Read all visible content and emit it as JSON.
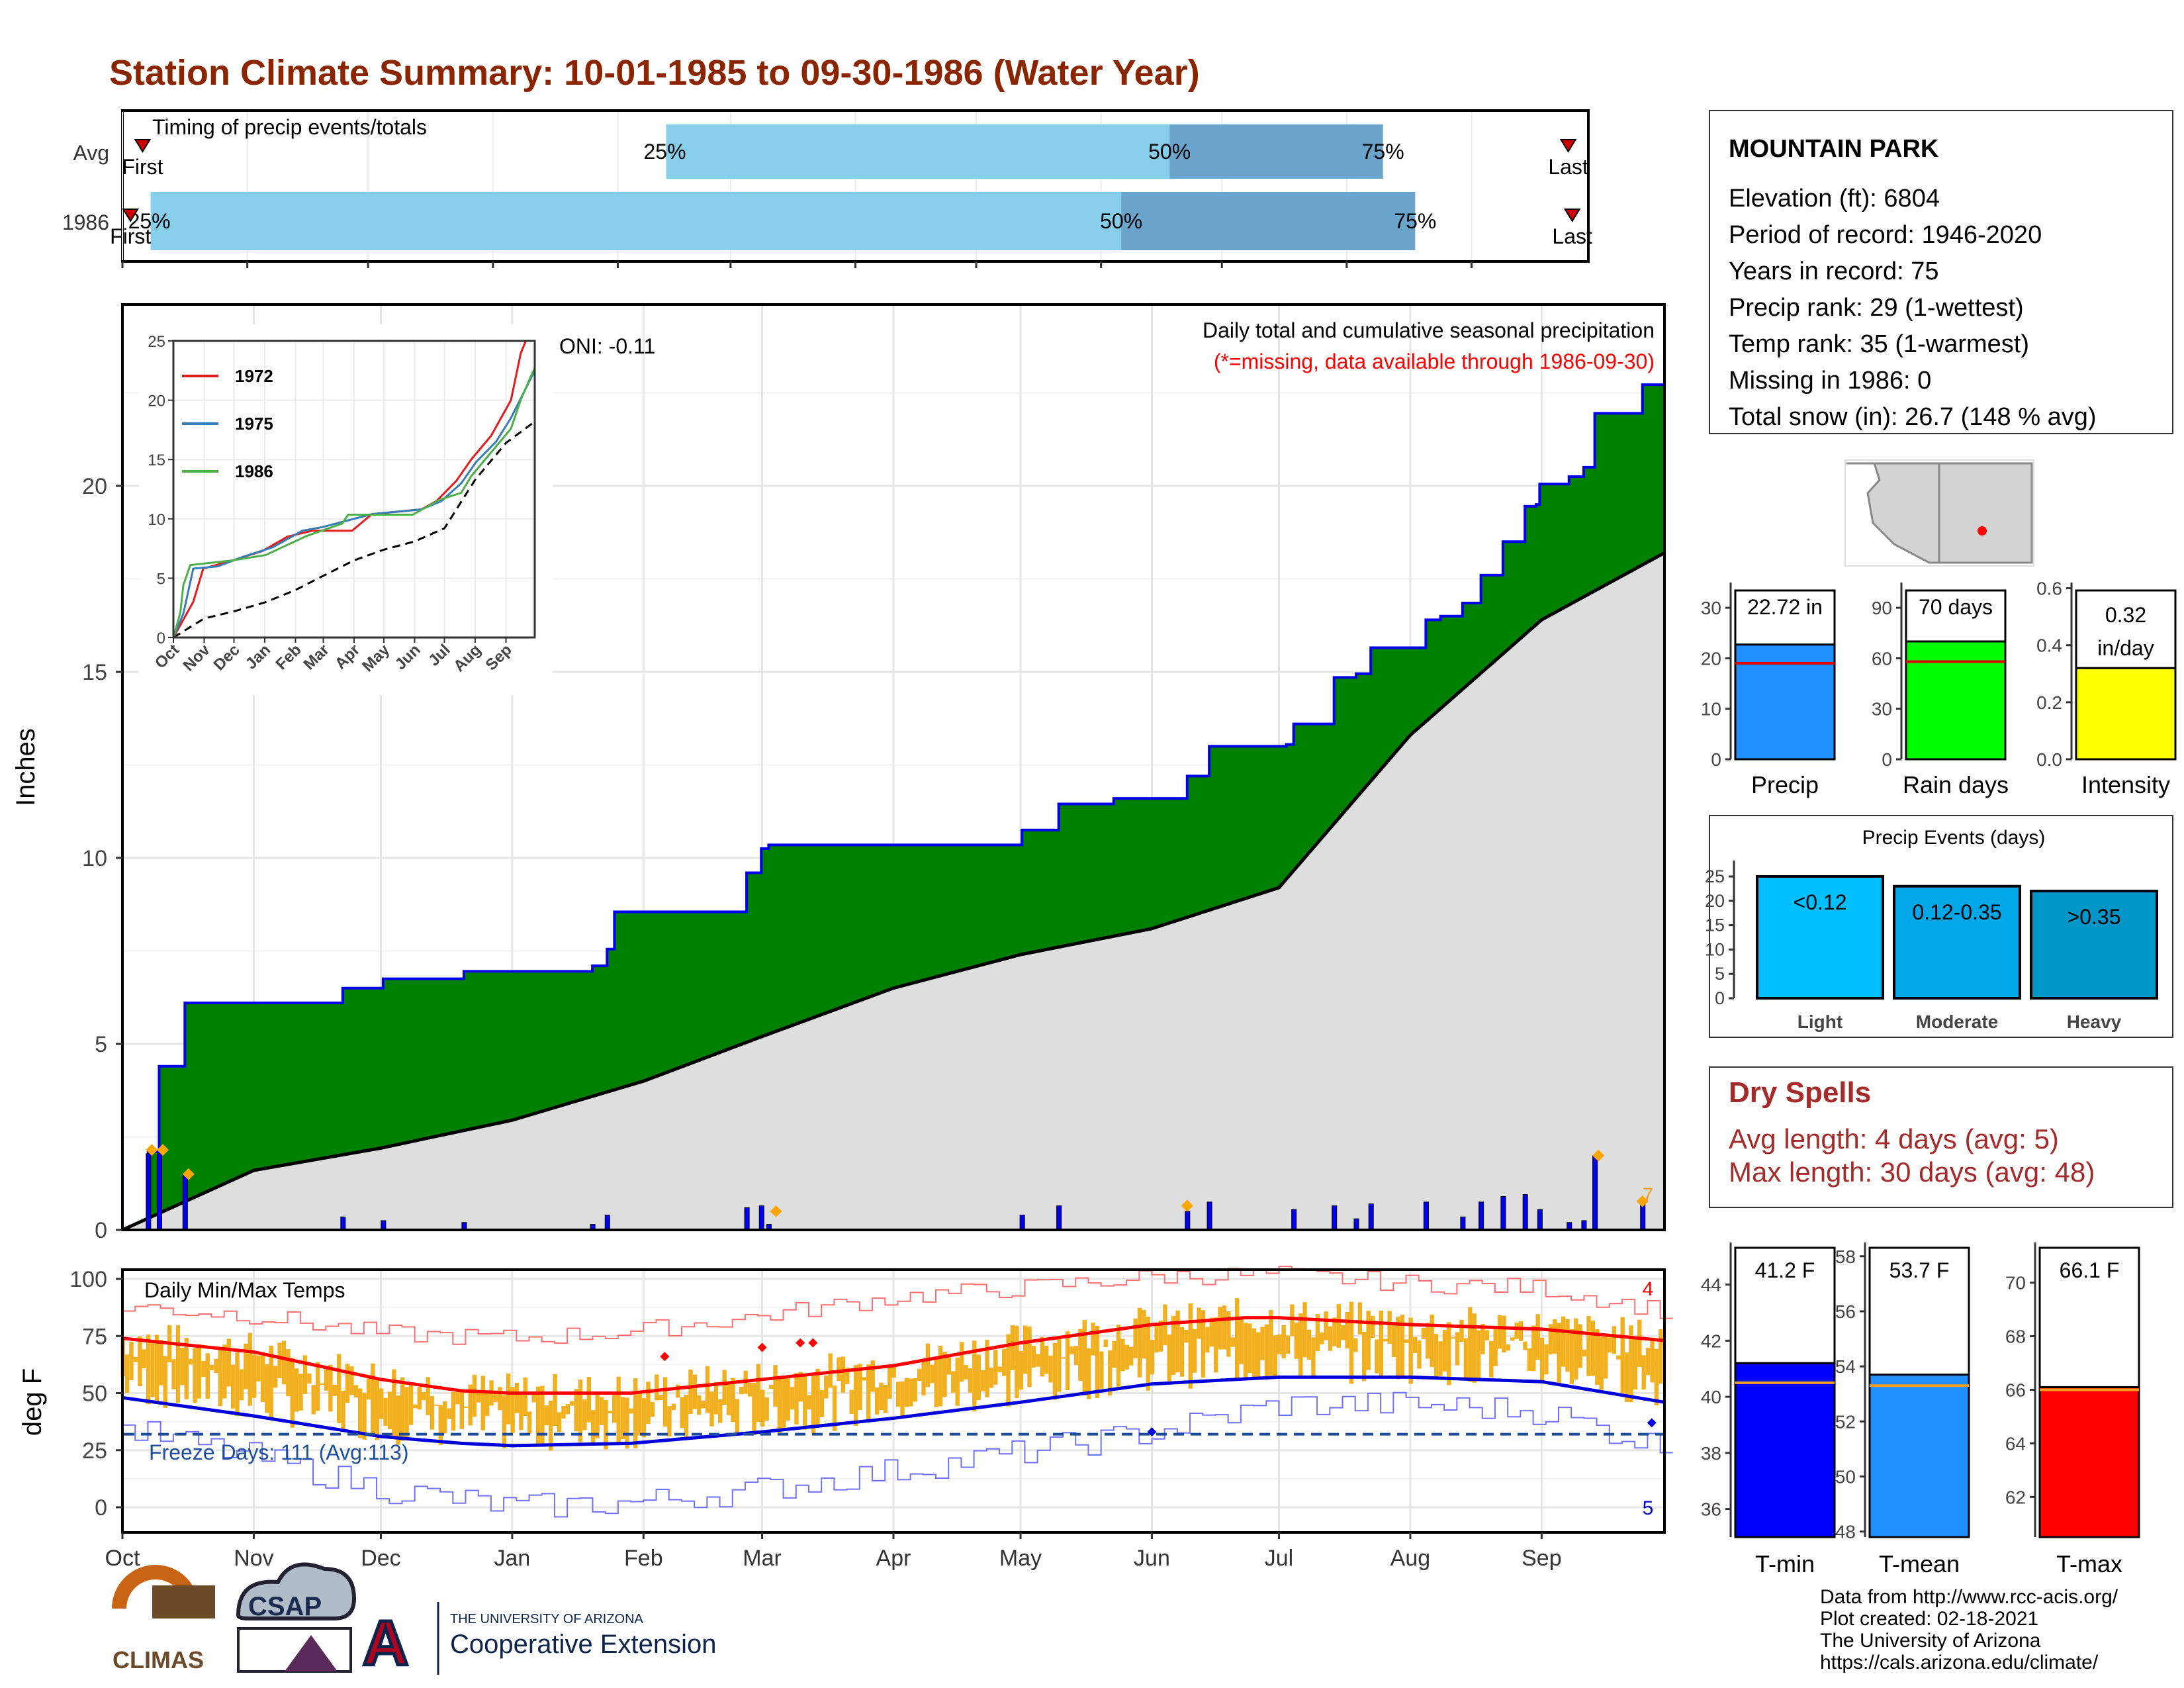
{
  "page": {
    "title": "Station Climate Summary: 10-01-1985 to 09-30-1986 (Water Year)",
    "colors": {
      "title": "#8b2500",
      "green": "#008000",
      "gray": "#dedede",
      "blue": "#0000ee",
      "lightblue": "#87ceeb",
      "midblue": "#6aa4cc",
      "orange": "#f0b020",
      "red": "#ff0000"
    }
  },
  "timing": {
    "title": "Timing of precip events/totals",
    "row_labels": [
      "Avg",
      "1986"
    ],
    "first_label": "First",
    "last_label": "Last",
    "avg": {
      "first": "10-06",
      "q25": "02-13",
      "q50": "06-18",
      "q75": "08-10",
      "last": "09-25"
    },
    "year": {
      "first": "10-03",
      "q25": "10-08",
      "q50": "06-06",
      "q75": "08-18",
      "last": "09-26"
    },
    "pct_labels": [
      "25%",
      "50%",
      "75%"
    ]
  },
  "months": [
    "Oct",
    "Nov",
    "Dec",
    "Jan",
    "Feb",
    "Mar",
    "Apr",
    "May",
    "Jun",
    "Jul",
    "Aug",
    "Sep"
  ],
  "precip": {
    "ylabel": "Inches",
    "yticks": [
      0,
      5,
      10,
      15,
      20
    ],
    "ylim": [
      0,
      25
    ],
    "oni": "ONI: -0.11",
    "note1": "Daily total and cumulative seasonal precipitation",
    "note2": "(*=missing, data available through 1986-09-30)",
    "missing_count": "7",
    "cumulative_steps": [
      [
        0,
        0
      ],
      [
        7,
        2.1
      ],
      [
        10,
        4.4
      ],
      [
        17,
        6.1
      ],
      [
        59,
        6.1
      ],
      [
        60,
        6.5
      ],
      [
        71,
        6.75
      ],
      [
        92,
        6.75
      ],
      [
        93,
        6.95
      ],
      [
        126,
        6.95
      ],
      [
        128,
        7.1
      ],
      [
        132,
        7.55
      ],
      [
        134,
        8.55
      ],
      [
        169,
        8.55
      ],
      [
        170,
        9.6
      ],
      [
        174,
        10.25
      ],
      [
        176,
        10.35
      ],
      [
        241,
        10.35
      ],
      [
        245,
        10.75
      ],
      [
        255,
        11.45
      ],
      [
        268,
        11.45
      ],
      [
        270,
        11.6
      ],
      [
        288,
        11.6
      ],
      [
        290,
        12.2
      ],
      [
        296,
        13.0
      ],
      [
        317,
        13.05
      ],
      [
        319,
        13.6
      ],
      [
        330,
        14.85
      ],
      [
        336,
        14.95
      ],
      [
        340,
        15.65
      ],
      [
        350,
        15.65
      ],
      [
        355,
        16.4
      ],
      [
        359,
        16.5
      ],
      [
        365,
        16.85
      ],
      [
        370,
        17.6
      ],
      [
        374,
        17.6
      ],
      [
        376,
        18.5
      ],
      [
        382,
        19.45
      ],
      [
        385,
        19.5
      ],
      [
        386,
        20.05
      ],
      [
        394,
        20.25
      ],
      [
        398,
        20.5
      ],
      [
        401,
        21.95
      ],
      [
        413,
        21.95
      ],
      [
        414,
        22.72
      ],
      [
        420,
        22.72
      ]
    ],
    "avg_cumulative": [
      [
        0,
        0
      ],
      [
        31,
        1.6
      ],
      [
        61,
        2.2
      ],
      [
        92,
        2.95
      ],
      [
        123,
        4.0
      ],
      [
        151,
        5.2
      ],
      [
        182,
        6.5
      ],
      [
        212,
        7.4
      ],
      [
        243,
        8.1
      ],
      [
        273,
        9.2
      ],
      [
        304,
        13.3
      ],
      [
        335,
        16.4
      ],
      [
        364,
        18.2
      ]
    ],
    "daily_bars": [
      [
        7,
        2.05
      ],
      [
        10,
        2.05
      ],
      [
        17,
        1.5
      ],
      [
        60,
        0.35
      ],
      [
        71,
        0.25
      ],
      [
        93,
        0.2
      ],
      [
        128,
        0.15
      ],
      [
        132,
        0.4
      ],
      [
        170,
        0.6
      ],
      [
        174,
        0.65
      ],
      [
        176,
        0.15
      ],
      [
        245,
        0.4
      ],
      [
        255,
        0.65
      ],
      [
        290,
        0.5
      ],
      [
        296,
        0.75
      ],
      [
        319,
        0.55
      ],
      [
        330,
        0.65
      ],
      [
        336,
        0.3
      ],
      [
        340,
        0.7
      ],
      [
        355,
        0.75
      ],
      [
        365,
        0.35
      ],
      [
        370,
        0.75
      ],
      [
        376,
        0.9
      ],
      [
        382,
        0.95
      ],
      [
        386,
        0.55
      ],
      [
        394,
        0.2
      ],
      [
        398,
        0.25
      ],
      [
        401,
        2.0
      ],
      [
        414,
        0.77
      ]
    ],
    "event_markers": [
      [
        8,
        2.15
      ],
      [
        11,
        2.15
      ],
      [
        18,
        1.5
      ],
      [
        178,
        0.5
      ],
      [
        290,
        0.65
      ],
      [
        402,
        2.0
      ],
      [
        414,
        0.77
      ]
    ]
  },
  "inset": {
    "series": [
      {
        "name": "1972",
        "color": "#e41a1c",
        "points": [
          [
            0,
            0
          ],
          [
            20,
            3
          ],
          [
            30,
            5.8
          ],
          [
            60,
            6.5
          ],
          [
            90,
            7.3
          ],
          [
            115,
            8.5
          ],
          [
            140,
            9.0
          ],
          [
            180,
            9.0
          ],
          [
            200,
            10.4
          ],
          [
            250,
            10.8
          ],
          [
            265,
            11.5
          ],
          [
            285,
            13.2
          ],
          [
            300,
            15.0
          ],
          [
            320,
            17.0
          ],
          [
            340,
            20.0
          ],
          [
            350,
            24.0
          ],
          [
            355,
            25.0
          ],
          [
            364,
            25.0
          ]
        ]
      },
      {
        "name": "1975",
        "color": "#377eb8",
        "points": [
          [
            0,
            0
          ],
          [
            10,
            2
          ],
          [
            20,
            5.8
          ],
          [
            45,
            6.0
          ],
          [
            70,
            6.8
          ],
          [
            100,
            7.6
          ],
          [
            130,
            9.0
          ],
          [
            150,
            9.3
          ],
          [
            200,
            10.4
          ],
          [
            250,
            10.8
          ],
          [
            270,
            11.5
          ],
          [
            290,
            13.0
          ],
          [
            305,
            14.8
          ],
          [
            325,
            16.5
          ],
          [
            340,
            18.5
          ],
          [
            355,
            21.0
          ],
          [
            364,
            22.5
          ]
        ]
      },
      {
        "name": "1986",
        "color": "#4daf4a",
        "points": [
          [
            0,
            0
          ],
          [
            7,
            2.1
          ],
          [
            10,
            4.4
          ],
          [
            17,
            6.1
          ],
          [
            60,
            6.5
          ],
          [
            93,
            6.95
          ],
          [
            134,
            8.55
          ],
          [
            170,
            9.6
          ],
          [
            176,
            10.35
          ],
          [
            241,
            10.35
          ],
          [
            268,
            11.6
          ],
          [
            290,
            12.2
          ],
          [
            300,
            13.6
          ],
          [
            320,
            15.6
          ],
          [
            340,
            17.6
          ],
          [
            350,
            20.05
          ],
          [
            360,
            22.0
          ],
          [
            364,
            22.72
          ]
        ]
      }
    ],
    "avg_points": [
      [
        0,
        0
      ],
      [
        31,
        1.6
      ],
      [
        61,
        2.2
      ],
      [
        92,
        2.95
      ],
      [
        123,
        4.0
      ],
      [
        151,
        5.2
      ],
      [
        182,
        6.5
      ],
      [
        212,
        7.4
      ],
      [
        243,
        8.1
      ],
      [
        273,
        9.2
      ],
      [
        304,
        13.3
      ],
      [
        335,
        16.4
      ],
      [
        364,
        18.2
      ]
    ],
    "yticks": [
      0,
      5,
      10,
      15,
      20,
      25
    ],
    "months": [
      "Oct",
      "Nov",
      "Dec",
      "Jan",
      "Feb",
      "Mar",
      "Apr",
      "May",
      "Jun",
      "Jul",
      "Aug",
      "Sep"
    ]
  },
  "temps": {
    "ylabel": "deg F",
    "title": "Daily Min/Max Temps",
    "yticks": [
      0,
      25,
      50,
      75,
      100
    ],
    "freeze_label": "Freeze Days: 111 (Avg:113)",
    "freeze_line": 32,
    "max_missing": "4",
    "min_missing": "5",
    "avg_tmax": [
      [
        0,
        74
      ],
      [
        31,
        68
      ],
      [
        61,
        56
      ],
      [
        80,
        51
      ],
      [
        92,
        50
      ],
      [
        120,
        50
      ],
      [
        151,
        56
      ],
      [
        182,
        62
      ],
      [
        212,
        72
      ],
      [
        243,
        80
      ],
      [
        265,
        83
      ],
      [
        273,
        83
      ],
      [
        304,
        80
      ],
      [
        335,
        78
      ],
      [
        364,
        73
      ]
    ],
    "avg_tmin": [
      [
        0,
        48
      ],
      [
        31,
        40
      ],
      [
        61,
        31
      ],
      [
        80,
        28
      ],
      [
        92,
        27
      ],
      [
        120,
        28
      ],
      [
        151,
        33
      ],
      [
        182,
        39
      ],
      [
        212,
        46
      ],
      [
        243,
        54
      ],
      [
        273,
        57
      ],
      [
        304,
        57
      ],
      [
        335,
        55
      ],
      [
        364,
        46
      ]
    ],
    "rec_max": [
      [
        0,
        88
      ],
      [
        31,
        84
      ],
      [
        61,
        76
      ],
      [
        92,
        74
      ],
      [
        120,
        77
      ],
      [
        151,
        84
      ],
      [
        182,
        92
      ],
      [
        212,
        96
      ],
      [
        243,
        101
      ],
      [
        273,
        102
      ],
      [
        304,
        98
      ],
      [
        335,
        96
      ],
      [
        364,
        86
      ]
    ],
    "rec_min": [
      [
        0,
        34
      ],
      [
        31,
        22
      ],
      [
        61,
        8
      ],
      [
        92,
        0
      ],
      [
        120,
        2
      ],
      [
        151,
        8
      ],
      [
        182,
        16
      ],
      [
        212,
        24
      ],
      [
        243,
        33
      ],
      [
        273,
        45
      ],
      [
        304,
        45
      ],
      [
        335,
        42
      ],
      [
        364,
        26
      ]
    ]
  },
  "station": {
    "name": "MOUNTAIN PARK",
    "lines": [
      "Elevation (ft): 6804",
      "Period of record: 1946-2020",
      "Years in record: 75",
      "Precip rank: 29 (1-wettest)",
      "Temp rank: 35 (1-warmest)",
      "Missing in 1986: 0",
      "Total snow (in): 26.7 (148 % avg)"
    ]
  },
  "summary_bars": [
    {
      "label": "Precip",
      "value": 22.72,
      "value_label": "22.72 in",
      "avg": 19.0,
      "ymax": 35,
      "yticks": [
        0,
        10,
        20,
        30
      ],
      "color": "#1e90ff"
    },
    {
      "label": "Rain days",
      "value": 70,
      "value_label": "70 days",
      "avg": 58,
      "ymax": 105,
      "yticks": [
        0,
        30,
        60,
        90
      ],
      "color": "#00ff00"
    },
    {
      "label": "Intensity",
      "value": 0.32,
      "value_label": "0.32 in/day",
      "avg": 0.33,
      "ymax": 0.62,
      "yticks": [
        "0.0",
        "0.2",
        "0.4",
        "0.6"
      ],
      "color": "#ffff00"
    }
  ],
  "events": {
    "title": "Precip Events (days)",
    "yticks": [
      0,
      5,
      10,
      15,
      20,
      25
    ],
    "bars": [
      {
        "category": "Light",
        "value": 25,
        "label": "<0.12",
        "color": "#00bfff"
      },
      {
        "category": "Moderate",
        "value": 23,
        "label": "0.12-0.35",
        "color": "#00a8e8"
      },
      {
        "category": "Heavy",
        "value": 22,
        "label": ">0.35",
        "color": "#0096c8"
      }
    ]
  },
  "dry_spells": {
    "title": "Dry Spells",
    "avg_line": "Avg length: 4 days (avg: 5)",
    "max_line": "Max length: 30 days (avg: 48)"
  },
  "temp_bars": [
    {
      "label": "T-min",
      "value": 41.2,
      "value_label": "41.2 F",
      "avg": 40.5,
      "ymin": 35,
      "ymax": 45.5,
      "yticks": [
        36,
        38,
        40,
        42,
        44
      ],
      "color": "#0000ff"
    },
    {
      "label": "T-mean",
      "value": 53.7,
      "value_label": "53.7 F",
      "avg": 53.3,
      "ymin": 47.8,
      "ymax": 58.5,
      "yticks": [
        48,
        50,
        52,
        54,
        56,
        58
      ],
      "color": "#1e90ff"
    },
    {
      "label": "T-max",
      "value": 66.1,
      "value_label": "66.1 F",
      "avg": 66.0,
      "ymin": 60.5,
      "ymax": 71.5,
      "yticks": [
        62,
        64,
        66,
        68,
        70
      ],
      "color": "#ff0000"
    }
  ],
  "footer": {
    "logo1": "CLIMAS",
    "logo2": "CSAP",
    "logo3_small": "THE UNIVERSITY OF ARIZONA",
    "logo3_big": "Cooperative Extension",
    "credits": [
      "Data from http://www.rcc-acis.org/",
      "Plot created: 02-18-2021",
      "The University of Arizona",
      "https://cals.arizona.edu/climate/"
    ]
  }
}
